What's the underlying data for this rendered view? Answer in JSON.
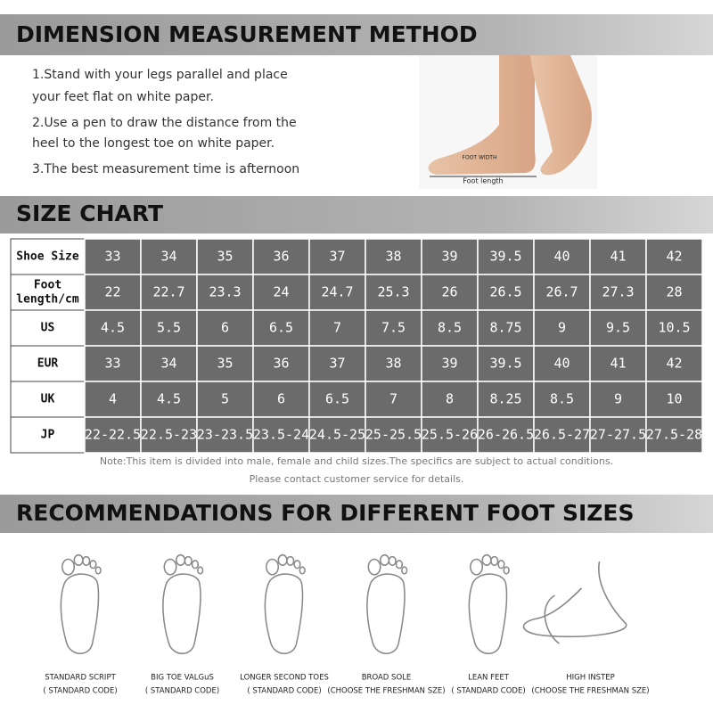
{
  "section1": {
    "title": "DIMENSION MEASUREMENT METHOD",
    "lines": [
      "1.Stand with your legs parallel and place",
      "your feet flat on white paper.",
      "2.Use a pen to draw the distance from the",
      "heel to the longest toe on white paper.",
      "3.The best measurement time is afternoon"
    ],
    "image_labels": [
      "FOOT WIDTH",
      "Foot length"
    ]
  },
  "section2": {
    "title": "SIZE CHART",
    "table": {
      "rows": [
        {
          "label": [
            "Shoe Size"
          ],
          "cells": [
            "33",
            "34",
            "35",
            "36",
            "37",
            "38",
            "39",
            "39.5",
            "40",
            "41",
            "42"
          ]
        },
        {
          "label": [
            "Foot",
            "length/cm"
          ],
          "cells": [
            "22",
            "22.7",
            "23.3",
            "24",
            "24.7",
            "25.3",
            "26",
            "26.5",
            "26.7",
            "27.3",
            "28"
          ]
        },
        {
          "label": [
            "US"
          ],
          "cells": [
            "4.5",
            "5.5",
            "6",
            "6.5",
            "7",
            "7.5",
            "8.5",
            "8.75",
            "9",
            "9.5",
            "10.5"
          ]
        },
        {
          "label": [
            "EUR"
          ],
          "cells": [
            "33",
            "34",
            "35",
            "36",
            "37",
            "38",
            "39",
            "39.5",
            "40",
            "41",
            "42"
          ]
        },
        {
          "label": [
            "UK"
          ],
          "cells": [
            "4",
            "4.5",
            "5",
            "6",
            "6.5",
            "7",
            "8",
            "8.25",
            "8.5",
            "9",
            "10"
          ]
        },
        {
          "label": [
            "JP"
          ],
          "cells": [
            "22-22.5",
            "22.5-23",
            "23-23.5",
            "23.5-24",
            "24.5-25",
            "25-25.5",
            "25.5-26",
            "26-26.5",
            "26.5-27",
            "27-27.5",
            "27.5-28"
          ]
        }
      ]
    },
    "notes": [
      "Note:This item is divided into male, female and child sizes.The specifics are subject to actual conditions.",
      "Please contact customer service for details."
    ]
  },
  "section3": {
    "title": "RECOMMENDATIONS FOR DIFFERENT FOOT SIZES",
    "feet": [
      {
        "name": "STANDARD SCRIPT",
        "note": "( STANDARD CODE)"
      },
      {
        "name": "BIG TOE VALGuS",
        "note": "( STANDARD CODE)"
      },
      {
        "name": "LONGER SECOND TOES",
        "note": "( STANDARD CODE)"
      },
      {
        "name": "BROAD SOLE",
        "note": "(CHOOSE THE FRESHMAN SZE)"
      },
      {
        "name": "LEAN FEET",
        "note": "( STANDARD CODE)"
      },
      {
        "name": "HIGH INSTEP",
        "note": "(CHOOSE THE FRESHMAN SZE)"
      }
    ]
  }
}
